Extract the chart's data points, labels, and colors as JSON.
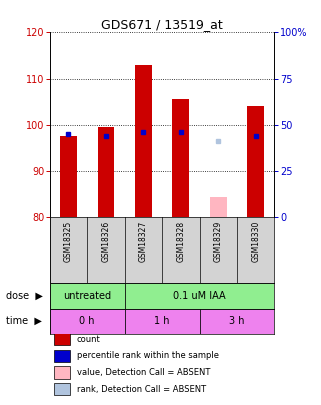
{
  "title": "GDS671 / 13519_at",
  "samples": [
    "GSM18325",
    "GSM18326",
    "GSM18327",
    "GSM18328",
    "GSM18329",
    "GSM18330"
  ],
  "red_bar_values": [
    97.5,
    99.5,
    113.0,
    105.5,
    84.5,
    104.0
  ],
  "blue_marker_values": [
    98.0,
    97.5,
    98.5,
    98.5,
    null,
    97.5
  ],
  "blue_rank_absent_value": 96.5,
  "blue_rank_absent_sample": 4,
  "ylim_left": [
    80,
    120
  ],
  "ylim_right": [
    0,
    100
  ],
  "yticks_left": [
    80,
    90,
    100,
    110,
    120
  ],
  "yticks_right": [
    0,
    25,
    50,
    75,
    100
  ],
  "yticklabels_right": [
    "0",
    "25",
    "50",
    "75",
    "100%"
  ],
  "dose_labels": [
    {
      "text": "untreated",
      "span": [
        0,
        2
      ],
      "color": "#90EE90"
    },
    {
      "text": "0.1 uM IAA",
      "span": [
        2,
        6
      ],
      "color": "#90EE90"
    }
  ],
  "time_labels": [
    {
      "text": "0 h",
      "span": [
        0,
        2
      ],
      "color": "#EE82EE"
    },
    {
      "text": "1 h",
      "span": [
        2,
        4
      ],
      "color": "#EE82EE"
    },
    {
      "text": "3 h",
      "span": [
        4,
        6
      ],
      "color": "#EE82EE"
    }
  ],
  "legend_items": [
    {
      "color": "#CC0000",
      "label": "count"
    },
    {
      "color": "#0000CC",
      "label": "percentile rank within the sample"
    },
    {
      "color": "#FFB6C1",
      "label": "value, Detection Call = ABSENT"
    },
    {
      "color": "#B0C4DE",
      "label": "rank, Detection Call = ABSENT"
    }
  ],
  "bar_color": "#CC0000",
  "blue_marker_color": "#0000CC",
  "absent_bar_color": "#FFB6C1",
  "absent_rank_color": "#B0C4DE",
  "tick_color_left": "#CC0000",
  "tick_color_right": "#0000CC",
  "bg_color": "#FFFFFF",
  "gray_bg": "#D3D3D3"
}
